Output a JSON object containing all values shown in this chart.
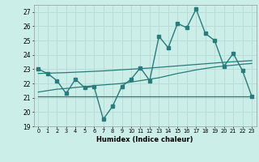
{
  "x": [
    0,
    1,
    2,
    3,
    4,
    5,
    6,
    7,
    8,
    9,
    10,
    11,
    12,
    13,
    14,
    15,
    16,
    17,
    18,
    19,
    20,
    21,
    22,
    23
  ],
  "main_line": [
    23.0,
    22.7,
    22.2,
    21.3,
    22.3,
    21.7,
    21.8,
    19.5,
    20.4,
    21.8,
    22.3,
    23.1,
    22.2,
    25.3,
    24.5,
    26.2,
    25.9,
    27.2,
    25.5,
    25.0,
    23.2,
    24.1,
    22.9,
    21.1
  ],
  "trend_flat": [
    21.1,
    21.1,
    21.1,
    21.1,
    21.1,
    21.1,
    21.1,
    21.1,
    21.1,
    21.1,
    21.1,
    21.1,
    21.1,
    21.1,
    21.1,
    21.1,
    21.1,
    21.1,
    21.1,
    21.1,
    21.1,
    21.1,
    21.1,
    21.1
  ],
  "trend_rise1": [
    21.4,
    21.5,
    21.6,
    21.65,
    21.72,
    21.78,
    21.85,
    21.9,
    21.95,
    22.0,
    22.1,
    22.2,
    22.3,
    22.4,
    22.55,
    22.7,
    22.82,
    22.95,
    23.05,
    23.15,
    23.22,
    23.28,
    23.35,
    23.4
  ],
  "trend_rise2": [
    22.7,
    22.72,
    22.74,
    22.76,
    22.79,
    22.82,
    22.85,
    22.88,
    22.92,
    22.96,
    23.0,
    23.04,
    23.08,
    23.13,
    23.18,
    23.23,
    23.28,
    23.33,
    23.38,
    23.43,
    23.48,
    23.52,
    23.56,
    23.6
  ],
  "line_color": "#2a7b7b",
  "bg_color": "#cceee8",
  "grid_color": "#b8ddd8",
  "xlabel": "Humidex (Indice chaleur)",
  "ylim": [
    19,
    27.5
  ],
  "xlim": [
    -0.5,
    23.5
  ]
}
